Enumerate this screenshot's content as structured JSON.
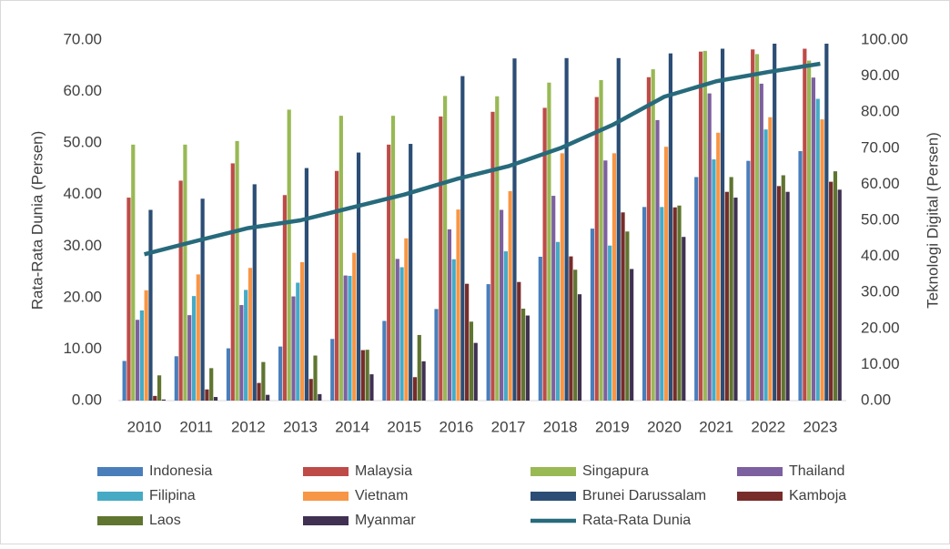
{
  "chart_data": {
    "type": "bar",
    "categories": [
      "2010",
      "2011",
      "2012",
      "2013",
      "2014",
      "2015",
      "2016",
      "2017",
      "2018",
      "2019",
      "2020",
      "2021",
      "2022",
      "2023"
    ],
    "y_label": "Rata-Rata Dunia (Persen)",
    "y2_label": "Teknologi Digital (Persen)",
    "ylim": [
      0,
      70
    ],
    "yticks": [
      {
        "value": 0,
        "label": "0.00"
      },
      {
        "value": 10,
        "label": "10.00"
      },
      {
        "value": 20,
        "label": "20.00"
      },
      {
        "value": 30,
        "label": "30.00"
      },
      {
        "value": 40,
        "label": "40.00"
      },
      {
        "value": 50,
        "label": "50.00"
      },
      {
        "value": 60,
        "label": "60.00"
      },
      {
        "value": 70,
        "label": "70.00"
      }
    ],
    "y2lim": [
      0,
      100
    ],
    "y2ticks": [
      {
        "value": 0,
        "label": "0.00"
      },
      {
        "value": 10,
        "label": "10.00"
      },
      {
        "value": 20,
        "label": "20.00"
      },
      {
        "value": 30,
        "label": "30.00"
      },
      {
        "value": 40,
        "label": "40.00"
      },
      {
        "value": 50,
        "label": "50.00"
      },
      {
        "value": 60,
        "label": "60.00"
      },
      {
        "value": 70,
        "label": "70.00"
      },
      {
        "value": 80,
        "label": "80.00"
      },
      {
        "value": 90,
        "label": "90.00"
      },
      {
        "value": 100,
        "label": "100.00"
      }
    ],
    "grid": false,
    "legend": "bottom",
    "series": [
      {
        "name": "Indonesia",
        "color": "#4a7ebb",
        "axis": "y2",
        "values": [
          11,
          12.3,
          14.5,
          15,
          17.1,
          22.1,
          25.4,
          32.3,
          39.9,
          47.7,
          53.7,
          62,
          66.5,
          69.2
        ]
      },
      {
        "name": "Malaysia",
        "color": "#be4b48",
        "axis": "y2",
        "values": [
          56.3,
          61,
          65.8,
          57,
          63.7,
          71,
          78.8,
          80.1,
          81.2,
          84.2,
          89.7,
          96.8,
          97.4,
          97.6
        ]
      },
      {
        "name": "Singapura",
        "color": "#98b954",
        "axis": "y2",
        "values": [
          71,
          71,
          72,
          80.7,
          79,
          79,
          84.5,
          84.4,
          88.2,
          88.9,
          91.9,
          97,
          96.1,
          94.3
        ]
      },
      {
        "name": "Thailand",
        "color": "#7d60a0",
        "axis": "y2",
        "values": [
          22.4,
          23.7,
          26.5,
          28.9,
          34.7,
          39.3,
          47.5,
          52.9,
          56.8,
          66.6,
          77.8,
          85.2,
          87.9,
          89.6
        ]
      },
      {
        "name": "Filipina",
        "color": "#46aac5",
        "axis": "y2",
        "values": [
          25,
          29,
          30.7,
          32.7,
          34.6,
          37,
          39.2,
          41.4,
          44,
          43,
          53.7,
          66.9,
          75.2,
          83.7
        ]
      },
      {
        "name": "Vietnam",
        "color": "#f79646",
        "axis": "y2",
        "values": [
          30.6,
          35,
          36.8,
          38.4,
          41,
          45,
          53,
          58.1,
          68.6,
          68.6,
          70.4,
          74.3,
          78.6,
          78
        ]
      },
      {
        "name": "Brunei Darussalam",
        "color": "#2c4d75",
        "axis": "y2",
        "values": [
          52.9,
          56,
          60,
          64.5,
          68.8,
          71.2,
          90,
          94.9,
          95,
          95,
          96.3,
          97.6,
          99,
          99
        ]
      },
      {
        "name": "Kamboja",
        "color": "#772c2a",
        "axis": "y2",
        "values": [
          1.3,
          3.1,
          4.9,
          6,
          14,
          6.5,
          32.4,
          32.9,
          40,
          52.2,
          53.6,
          57.9,
          59.5,
          60.7
        ]
      },
      {
        "name": "Laos",
        "color": "#5f7530",
        "axis": "y2",
        "values": [
          7,
          9,
          10.7,
          12.5,
          14.1,
          18.2,
          21.9,
          25.5,
          36.3,
          46.9,
          54.1,
          62,
          62.5,
          63.6
        ]
      },
      {
        "name": "Myanmar",
        "color": "#403152",
        "axis": "y2",
        "values": [
          0.3,
          1,
          1.6,
          1.8,
          7.3,
          10.9,
          16,
          23.6,
          29.5,
          36.5,
          45.4,
          56.3,
          57.9,
          58.5
        ]
      },
      {
        "name": "Rata-Rata Dunia",
        "color": "#276a7c",
        "type": "line",
        "values": [
          28.4,
          31,
          33.5,
          35,
          37.5,
          40,
          43,
          45.5,
          49,
          53.5,
          59,
          62,
          63.8,
          65.4
        ]
      }
    ]
  }
}
